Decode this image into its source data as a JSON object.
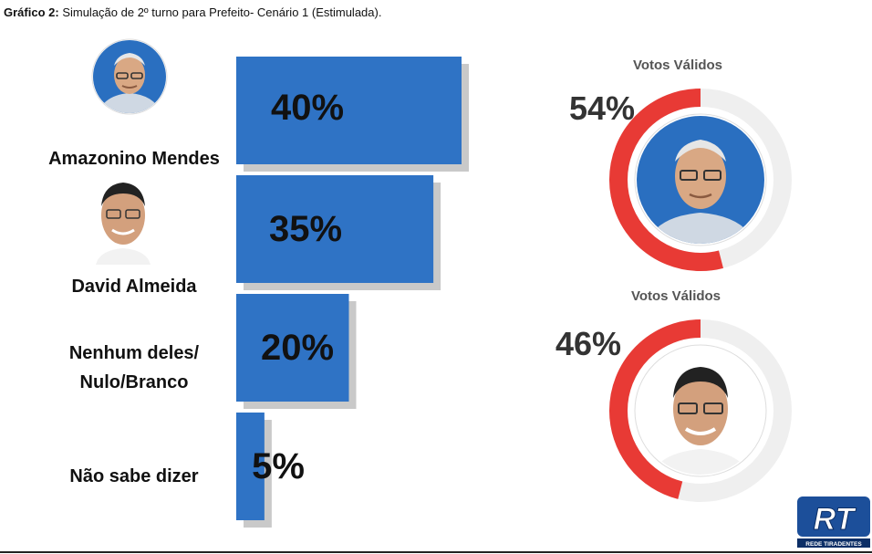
{
  "title": {
    "prefix": "Gráfico 2:",
    "text": "Simulação de 2º turno para Prefeito- Cenário 1 (Estimulada)."
  },
  "colors": {
    "bar": "#2f73c5",
    "bar_shadow": "#c9c9c9",
    "donut_fill": "#e83a35",
    "donut_track": "#efefef",
    "avatar_bg": "#2a6fc0"
  },
  "chart_data": [
    {
      "type": "bar",
      "orientation": "horizontal",
      "categories": [
        "Amazonino Mendes",
        "David Almeida",
        "Nenhum deles/ Nulo/Branco",
        "Não sabe dizer"
      ],
      "category_lines": [
        [
          "Amazonino Mendes"
        ],
        [
          "David Almeida"
        ],
        [
          "Nenhum deles/",
          "Nulo/Branco"
        ],
        [
          "Não sabe dizer"
        ]
      ],
      "values": [
        40,
        35,
        20,
        5
      ],
      "value_labels": [
        "40%",
        "35%",
        "20%",
        "5%"
      ],
      "unit": "%",
      "xlim": [
        0,
        40
      ],
      "grid": false,
      "avatars": [
        "candidate-photo-1-icon",
        "candidate-photo-2-icon",
        "",
        ""
      ]
    },
    {
      "type": "pie",
      "style": "donut",
      "title": "Votos Válidos",
      "values": [
        54,
        46
      ],
      "value_label": "54%",
      "avatar": "candidate-photo-1-icon"
    },
    {
      "type": "pie",
      "style": "donut",
      "title": "Votos Válidos",
      "values": [
        46,
        54
      ],
      "value_label": "46%",
      "avatar": "candidate-photo-2-icon"
    }
  ],
  "logo": {
    "mark": "RT",
    "caption": "REDE TIRADENTES"
  }
}
